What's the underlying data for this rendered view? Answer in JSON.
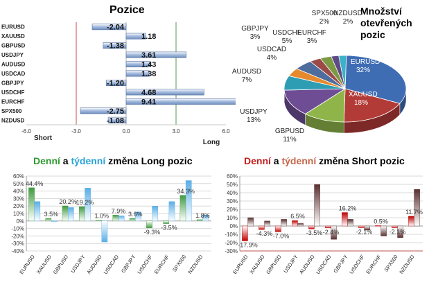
{
  "chart_data": [
    {
      "type": "bar",
      "orientation": "horizontal",
      "title": "Pozice",
      "categories": [
        "EURUSD",
        "XAUUSD",
        "GBPUSD",
        "USDJPY",
        "AUDUSD",
        "USDCAD",
        "GBPJPY",
        "USDCHF",
        "EURCHF",
        "SPX500",
        "NZDUSD"
      ],
      "values": [
        -2.04,
        1.18,
        -1.38,
        3.61,
        1.43,
        1.38,
        -1.2,
        4.68,
        9.41,
        -2.75,
        -1.08
      ],
      "value_labels": [
        "-2.04",
        "1.18",
        "-1.38",
        "3.61",
        "1.43",
        "1.38",
        "-1.20",
        "4.68",
        "9.41",
        "-2.75",
        "-1.08"
      ],
      "xlim": [
        -6,
        6
      ],
      "xticks": [
        "-6.0",
        "-3.0",
        "0.0",
        "3.0",
        "6.0"
      ],
      "xtick_values": [
        -6,
        -3,
        0,
        3,
        6
      ],
      "short_label": "Short",
      "long_label": "Long",
      "colors": {
        "bar": "#6f8fc0",
        "short_line": "#c0504d",
        "long_line": "#4f9a4f"
      }
    },
    {
      "type": "pie",
      "title": "Množství otevřených pozic",
      "title_lines": [
        "Množství",
        "otevřených",
        "pozic"
      ],
      "slices": [
        {
          "label": "EURUSD",
          "value": 32,
          "text": "32%",
          "color": "#3f6db4"
        },
        {
          "label": "XAUUSD",
          "value": 18,
          "text": "18%",
          "color": "#b33b37"
        },
        {
          "label": "GBPUSD",
          "value": 11,
          "text": "11%",
          "color": "#8fb54a"
        },
        {
          "label": "USDJPY",
          "value": 13,
          "text": "13%",
          "color": "#6e4d95"
        },
        {
          "label": "AUDUSD",
          "value": 7,
          "text": "7%",
          "color": "#2d9db4"
        },
        {
          "label": "USDCAD",
          "value": 4,
          "text": "4%",
          "color": "#e6892e"
        },
        {
          "label": "USDCHF",
          "value": 5,
          "text": "5%",
          "color": "#4e6c9c"
        },
        {
          "label": "GBPJPY",
          "value": 3,
          "text": "3%",
          "color": "#9b4a48"
        },
        {
          "label": "EURCHF",
          "value": 3,
          "text": "3%",
          "color": "#7a9a43"
        },
        {
          "label": "SPX500",
          "value": 2,
          "text": "2%",
          "color": "#5f4a84"
        },
        {
          "label": "NZDUSD",
          "value": 2,
          "text": "2%",
          "color": "#3bb2c8"
        }
      ]
    },
    {
      "type": "bar",
      "title_parts": [
        "Denní",
        " a ",
        "týdenní",
        " změna Long pozic"
      ],
      "title_colors": [
        "#2f9a2f",
        "#000000",
        "#2aa5d8",
        "#000000"
      ],
      "categories": [
        "EURUSD",
        "XAUUSD",
        "GBPUSD",
        "USDJPY",
        "AUDUSD",
        "USDCAD",
        "GBPJPY",
        "USDCHF",
        "EURCHF",
        "SPX500",
        "NZDUSD"
      ],
      "series": [
        {
          "name": "Denní",
          "values": [
            44.4,
            3.5,
            20.2,
            19.2,
            1.0,
            7.9,
            3.6,
            -9.3,
            -3.5,
            34.3,
            1.8
          ],
          "color": "#3f9a3f"
        },
        {
          "name": "týdenní",
          "values": [
            26,
            0,
            18,
            44,
            -28,
            7,
            12,
            20,
            26,
            54,
            8
          ],
          "color": "#5aaee6"
        }
      ],
      "data_labels": [
        "44.4%",
        "3.5%",
        "20.2%",
        "19.2%",
        "1.0%",
        "7.9%",
        "3.6%",
        "-9.3%",
        "-3.5%",
        "34.3%",
        "1.8%"
      ],
      "ylim": [
        -40,
        60
      ],
      "yticks": [
        "-40%",
        "-30%",
        "-20%",
        "-10%",
        "0%",
        "10%",
        "20%",
        "30%",
        "40%",
        "50%",
        "60%"
      ],
      "ytick_values": [
        -40,
        -30,
        -20,
        -10,
        0,
        10,
        20,
        30,
        40,
        50,
        60
      ],
      "grid": true
    },
    {
      "type": "bar",
      "title_parts": [
        "Denní",
        " a ",
        "týdenní",
        " změna Short pozic"
      ],
      "title_colors": [
        "#c41e1e",
        "#000000",
        "#c8664a",
        "#000000"
      ],
      "categories": [
        "EURUSD",
        "XAUUSD",
        "GBPUSD",
        "USDJPY",
        "AUDUSD",
        "USDCAD",
        "GBPJPY",
        "USDCHF",
        "EURCHF",
        "SPX500",
        "NZDUSD"
      ],
      "series": [
        {
          "name": "Denní",
          "values": [
            -17.9,
            -4.3,
            -7.0,
            6.5,
            -3.5,
            -2.4,
            16.2,
            -2.1,
            0.5,
            -2.1,
            11.7
          ],
          "color": "#c00000"
        },
        {
          "name": "týdenní",
          "values": [
            10,
            6,
            8,
            3,
            50,
            -16,
            8,
            -5,
            -12,
            -14,
            44
          ],
          "color": "#5a3030"
        }
      ],
      "data_labels": [
        "-17.9%",
        "-4.3%",
        "-7.0%",
        "6.5%",
        "-3.5%",
        "-2.4%",
        "16.2%",
        "-2.1%",
        "0.5%",
        "-2.1%",
        "11.7%"
      ],
      "ylim": [
        -30,
        60
      ],
      "yticks": [
        "-30%",
        "-20%",
        "-10%",
        "0%",
        "10%",
        "20%",
        "30%",
        "40%",
        "50%",
        "60%"
      ],
      "ytick_values": [
        -30,
        -20,
        -10,
        0,
        10,
        20,
        30,
        40,
        50,
        60
      ],
      "grid": true
    }
  ]
}
